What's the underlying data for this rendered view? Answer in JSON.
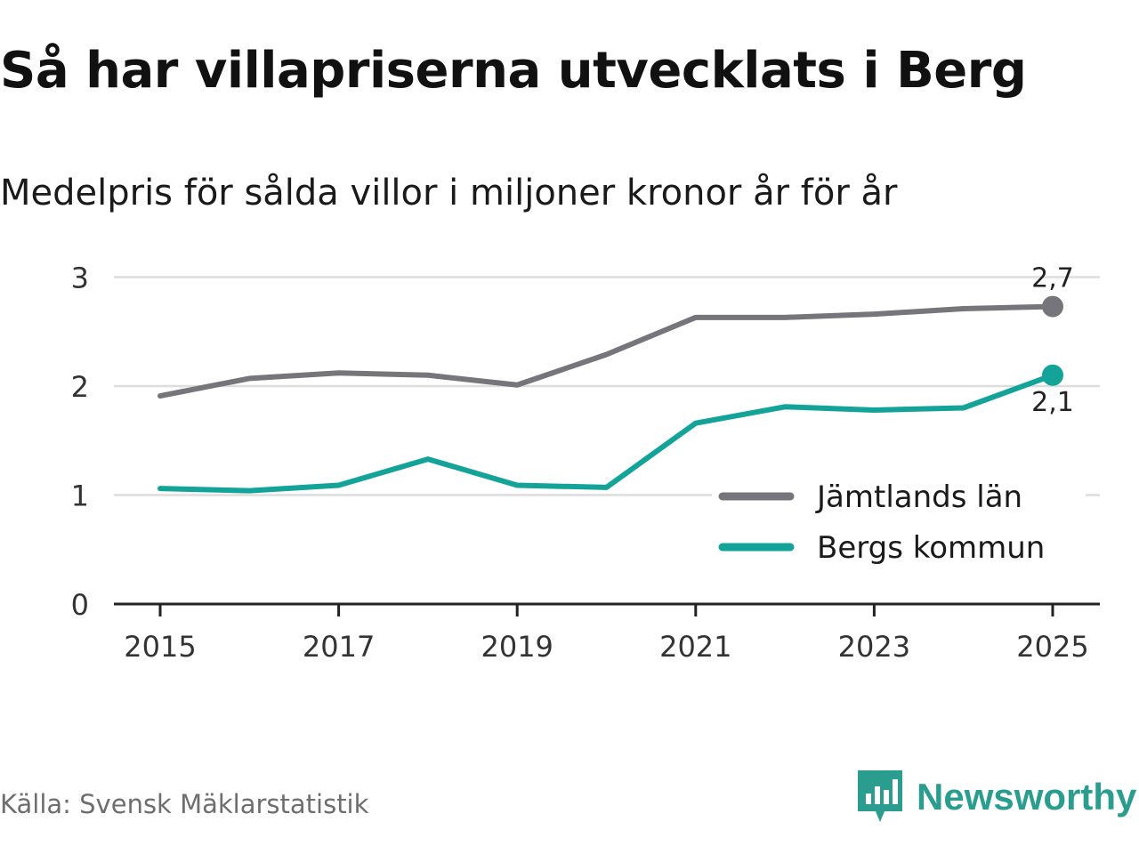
{
  "header": {
    "title": "Så har villapriserna utvecklats i Berg",
    "subtitle": "Medelpris för sålda villor i miljoner kronor år för år"
  },
  "footer": {
    "source": "Källa: Svensk Mäklarstatistik",
    "brand": "Newsworthy"
  },
  "colors": {
    "series_county": "#76757b",
    "series_municipality": "#14a398",
    "grid": "#dddddd",
    "axis": "#222222",
    "brand": "#2a9d8f"
  },
  "chart_data": {
    "type": "line",
    "title": "Så har villapriserna utvecklats i Berg",
    "subtitle": "Medelpris för sålda villor i miljoner kronor år för år",
    "xlabel": "",
    "ylabel": "",
    "x": [
      2015,
      2016,
      2017,
      2018,
      2019,
      2020,
      2021,
      2022,
      2023,
      2024,
      2025
    ],
    "x_ticks": [
      "2015",
      "2017",
      "2019",
      "2021",
      "2023",
      "2025"
    ],
    "y_ticks": [
      "0",
      "1",
      "2",
      "3"
    ],
    "ylim": [
      0,
      3.1
    ],
    "grid": true,
    "legend_position": "right, inside plot",
    "series": [
      {
        "name": "Jämtlands län",
        "color": "#76757b",
        "values": [
          1.91,
          2.07,
          2.12,
          2.1,
          2.01,
          2.29,
          2.63,
          2.63,
          2.66,
          2.71,
          2.73
        ],
        "end_label": "2,7"
      },
      {
        "name": "Bergs kommun",
        "color": "#14a398",
        "values": [
          1.06,
          1.04,
          1.09,
          1.33,
          1.09,
          1.07,
          1.66,
          1.81,
          1.78,
          1.8,
          2.1
        ],
        "end_label": "2,1"
      }
    ]
  }
}
